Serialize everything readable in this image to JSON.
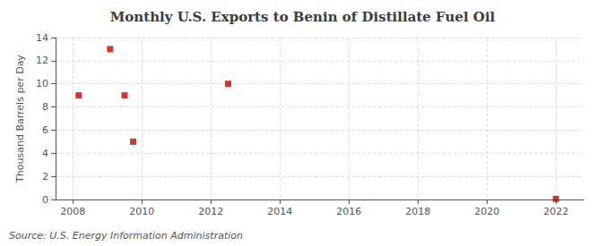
{
  "chart_data": {
    "type": "scatter",
    "title": "Monthly U.S. Exports to Benin of Distillate Fuel Oil",
    "ylabel": "Thousand Barrels per Day",
    "annotations": [
      "Source: U.S. Energy Information Administration"
    ],
    "x": [
      2008.17,
      2009.08,
      2009.5,
      2009.75,
      2012.5,
      2022.0
    ],
    "values": [
      9,
      13,
      9,
      5,
      10,
      0.05
    ],
    "color": "#cc0000",
    "marker": "square",
    "xlim": [
      2007.5,
      2022.8
    ],
    "xticks": [
      2008,
      2010,
      2012,
      2014,
      2016,
      2018,
      2020,
      2022
    ],
    "ylim": [
      0,
      14
    ],
    "yticks": [
      0,
      2,
      4,
      6,
      8,
      10,
      12,
      14
    ],
    "grid": true
  }
}
